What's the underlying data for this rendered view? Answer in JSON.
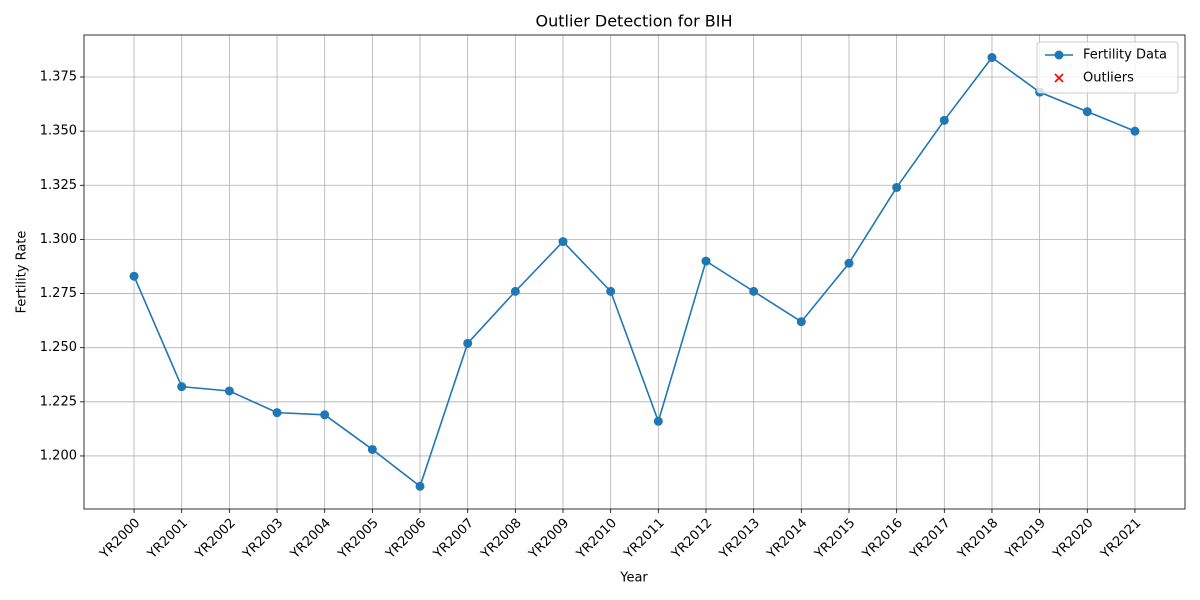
{
  "chart_data": {
    "type": "line",
    "title": "Outlier Detection for BIH",
    "xlabel": "Year",
    "ylabel": "Fertility Rate",
    "categories": [
      "YR2000",
      "YR2001",
      "YR2002",
      "YR2003",
      "YR2004",
      "YR2005",
      "YR2006",
      "YR2007",
      "YR2008",
      "YR2009",
      "YR2010",
      "YR2011",
      "YR2012",
      "YR2013",
      "YR2014",
      "YR2015",
      "YR2016",
      "YR2017",
      "YR2018",
      "YR2019",
      "YR2020",
      "YR2021"
    ],
    "series": [
      {
        "name": "Fertility Data",
        "color": "#1f77b4",
        "marker": "o",
        "values": [
          1.283,
          1.232,
          1.23,
          1.22,
          1.219,
          1.203,
          1.186,
          1.252,
          1.276,
          1.299,
          1.276,
          1.216,
          1.29,
          1.276,
          1.262,
          1.289,
          1.324,
          1.355,
          1.384,
          1.368,
          1.359,
          1.35
        ]
      },
      {
        "name": "Outliers",
        "color": "#ff0000",
        "marker": "x",
        "values": [
          null,
          null,
          null,
          null,
          null,
          null,
          null,
          null,
          null,
          null,
          null,
          null,
          null,
          null,
          null,
          null,
          null,
          null,
          null,
          null,
          null,
          null
        ]
      }
    ],
    "ylim": [
      1.1755,
      1.3944
    ],
    "yticks": [
      {
        "value": 1.2,
        "label": "1.200"
      },
      {
        "value": 1.225,
        "label": "1.225"
      },
      {
        "value": 1.25,
        "label": "1.250"
      },
      {
        "value": 1.275,
        "label": "1.275"
      },
      {
        "value": 1.3,
        "label": "1.300"
      },
      {
        "value": 1.325,
        "label": "1.325"
      },
      {
        "value": 1.35,
        "label": "1.350"
      },
      {
        "value": 1.375,
        "label": "1.375"
      }
    ],
    "grid": true,
    "legend": "upper right"
  }
}
